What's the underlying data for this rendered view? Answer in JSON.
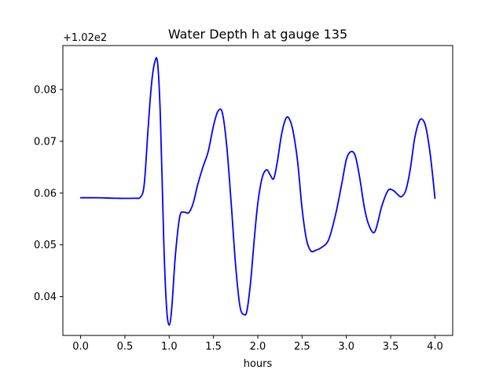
{
  "chart_data": {
    "type": "line",
    "title": "Water Depth h at gauge 135",
    "xlabel": "hours",
    "ylabel": "",
    "y_offset_label": "+1.02e2",
    "xlim": [
      -0.2,
      4.2
    ],
    "ylim": [
      0.0325,
      0.0885
    ],
    "x_ticks": [
      0.0,
      0.5,
      1.0,
      1.5,
      2.0,
      2.5,
      3.0,
      3.5,
      4.0
    ],
    "x_tick_labels": [
      "0.0",
      "0.5",
      "1.0",
      "1.5",
      "2.0",
      "2.5",
      "3.0",
      "3.5",
      "4.0"
    ],
    "y_ticks": [
      0.04,
      0.05,
      0.06,
      0.07,
      0.08
    ],
    "y_tick_labels": [
      "0.04",
      "0.05",
      "0.06",
      "0.07",
      "0.08"
    ],
    "grid": false,
    "legend": "none",
    "series": [
      {
        "color": "#0000ff",
        "x": [
          0.0,
          0.2,
          0.4,
          0.6,
          0.68,
          0.72,
          0.76,
          0.8,
          0.84,
          0.87,
          0.9,
          0.94,
          0.97,
          1.0,
          1.03,
          1.07,
          1.12,
          1.17,
          1.22,
          1.27,
          1.32,
          1.38,
          1.44,
          1.5,
          1.55,
          1.6,
          1.65,
          1.7,
          1.75,
          1.8,
          1.85,
          1.88,
          1.92,
          1.96,
          2.0,
          2.05,
          2.1,
          2.14,
          2.18,
          2.22,
          2.27,
          2.32,
          2.36,
          2.4,
          2.45,
          2.5,
          2.55,
          2.6,
          2.66,
          2.72,
          2.8,
          2.88,
          2.95,
          3.0,
          3.05,
          3.1,
          3.15,
          3.2,
          3.25,
          3.32,
          3.4,
          3.47,
          3.53,
          3.58,
          3.62,
          3.67,
          3.72,
          3.77,
          3.82,
          3.86,
          3.9,
          3.95,
          4.0
        ],
        "y": [
          0.0591,
          0.0591,
          0.059,
          0.059,
          0.0593,
          0.062,
          0.072,
          0.081,
          0.0855,
          0.085,
          0.075,
          0.05,
          0.038,
          0.0345,
          0.038,
          0.048,
          0.0555,
          0.0563,
          0.0562,
          0.058,
          0.0615,
          0.065,
          0.068,
          0.073,
          0.0758,
          0.0755,
          0.069,
          0.058,
          0.046,
          0.038,
          0.0365,
          0.0375,
          0.043,
          0.051,
          0.058,
          0.063,
          0.0645,
          0.0635,
          0.0628,
          0.066,
          0.0715,
          0.0745,
          0.0742,
          0.0718,
          0.066,
          0.057,
          0.051,
          0.0488,
          0.049,
          0.0495,
          0.051,
          0.056,
          0.062,
          0.0665,
          0.068,
          0.0672,
          0.063,
          0.0575,
          0.054,
          0.0525,
          0.0575,
          0.0605,
          0.0605,
          0.0597,
          0.0593,
          0.0605,
          0.0645,
          0.0705,
          0.0738,
          0.0742,
          0.0725,
          0.067,
          0.059
        ]
      }
    ]
  }
}
